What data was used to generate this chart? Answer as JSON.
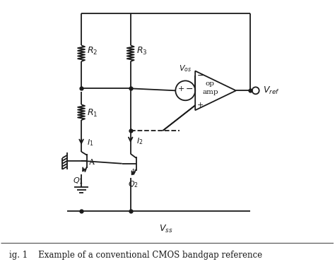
{
  "bg_color": "#ffffff",
  "line_color": "#1a1a1a",
  "fig_width": 4.74,
  "fig_height": 3.74,
  "dpi": 100,
  "caption": "ig. 1    Example of a conventional CMOS bandgap reference"
}
